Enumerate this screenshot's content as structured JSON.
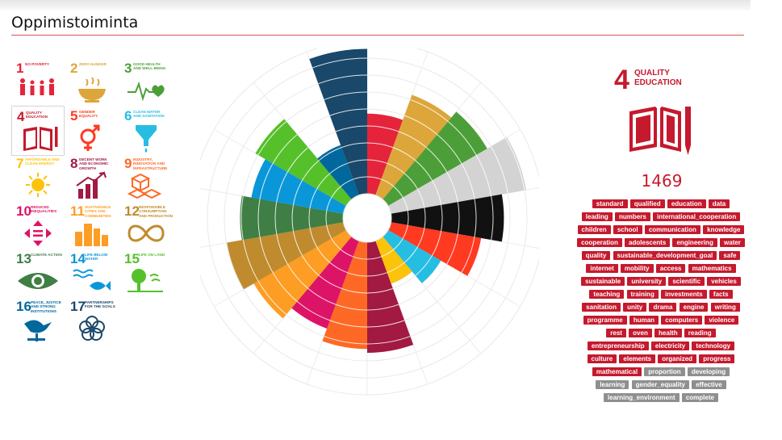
{
  "page": {
    "title": "Oppimistoiminta"
  },
  "sdg_tiles": [
    {
      "number": "1",
      "label": "NO POVERTY",
      "color": "#e5243b",
      "icon": "family-icon"
    },
    {
      "number": "2",
      "label": "ZERO HUNGER",
      "color": "#dda63a",
      "icon": "bowl-icon"
    },
    {
      "number": "3",
      "label": "GOOD HEALTH AND WELL-BEING",
      "color": "#4c9f38",
      "icon": "heartbeat-icon"
    },
    {
      "number": "4",
      "label": "QUALITY EDUCATION",
      "color": "#c5192d",
      "icon": "book-pencil-icon",
      "selected": true
    },
    {
      "number": "5",
      "label": "GENDER EQUALITY",
      "color": "#ff3a21",
      "icon": "gender-equality-icon"
    },
    {
      "number": "6",
      "label": "CLEAN WATER AND SANITATION",
      "color": "#26bde2",
      "icon": "water-drop-icon"
    },
    {
      "number": "7",
      "label": "AFFORDABLE AND CLEAN ENERGY",
      "color": "#fcc30b",
      "icon": "sun-icon"
    },
    {
      "number": "8",
      "label": "DECENT WORK AND ECONOMIC GROWTH",
      "color": "#a21942",
      "icon": "growth-chart-icon"
    },
    {
      "number": "9",
      "label": "INDUSTRY, INNOVATION AND INFRASTRUCTURE",
      "color": "#fd6925",
      "icon": "cubes-icon"
    },
    {
      "number": "10",
      "label": "REDUCED INEQUALITIES",
      "color": "#dd1367",
      "icon": "arrows-icon"
    },
    {
      "number": "11",
      "label": "SUSTAINABLE CITIES AND COMMUNITIES",
      "color": "#fd9d24",
      "icon": "buildings-icon"
    },
    {
      "number": "12",
      "label": "RESPONSIBLE CONSUMPTION AND PRODUCTION",
      "color": "#bf8b2e",
      "icon": "infinity-icon"
    },
    {
      "number": "13",
      "label": "CLIMATE ACTION",
      "color": "#3f7e44",
      "icon": "eye-globe-icon"
    },
    {
      "number": "14",
      "label": "LIFE BELOW WATER",
      "color": "#0a97d9",
      "icon": "fish-icon"
    },
    {
      "number": "15",
      "label": "LIFE ON LAND",
      "color": "#56c02b",
      "icon": "tree-icon"
    },
    {
      "number": "16",
      "label": "PEACE, JUSTICE AND STRONG INSTITUTIONS",
      "color": "#00689d",
      "icon": "dove-icon"
    },
    {
      "number": "17",
      "label": "PARTNERSHIPS FOR THE GOALS",
      "color": "#19486a",
      "icon": "rings-icon"
    }
  ],
  "chart_data": {
    "type": "polar-bar",
    "max": 8,
    "segments": [
      {
        "sdg": "1",
        "color": "#e5243b",
        "value": 4.2
      },
      {
        "sdg": "2",
        "color": "#dda63a",
        "value": 5.6
      },
      {
        "sdg": "3",
        "color": "#4c9f38",
        "value": 6.0
      },
      {
        "sdg": "17",
        "color": "#d3d3d3",
        "value": 7.2
      },
      {
        "sdg": "17",
        "color": "#111111",
        "value": 5.9
      },
      {
        "sdg": "5",
        "color": "#ff3a21",
        "value": 4.8
      },
      {
        "sdg": "6",
        "color": "#26bde2",
        "value": 3.2
      },
      {
        "sdg": "7",
        "color": "#fcc30b",
        "value": 2.4
      },
      {
        "sdg": "8",
        "color": "#a21942",
        "value": 5.8
      },
      {
        "sdg": "9",
        "color": "#fd6925",
        "value": 5.6
      },
      {
        "sdg": "10",
        "color": "#dd1367",
        "value": 4.9
      },
      {
        "sdg": "11",
        "color": "#fd9d24",
        "value": 5.6
      },
      {
        "sdg": "12",
        "color": "#bf8b2e",
        "value": 6.2
      },
      {
        "sdg": "13",
        "color": "#3f7e44",
        "value": 5.4
      },
      {
        "sdg": "14",
        "color": "#0a97d9",
        "value": 4.9
      },
      {
        "sdg": "15",
        "color": "#56c02b",
        "value": 5.5
      },
      {
        "sdg": "16",
        "color": "#00689d",
        "value": 2.8
      },
      {
        "sdg": "4",
        "color": "#19486a",
        "value": 7.6
      }
    ]
  },
  "selected_goal": {
    "number": "4",
    "label_line1": "QUALITY",
    "label_line2": "EDUCATION",
    "color": "#c5192d",
    "icon": "book-pencil-icon",
    "count": "1469"
  },
  "keywords": [
    {
      "text": "standard"
    },
    {
      "text": "qualified"
    },
    {
      "text": "education"
    },
    {
      "text": "data"
    },
    {
      "text": "leading"
    },
    {
      "text": "numbers"
    },
    {
      "text": "international_cooperation"
    },
    {
      "text": "children"
    },
    {
      "text": "school"
    },
    {
      "text": "communication"
    },
    {
      "text": "knowledge"
    },
    {
      "text": "cooperation"
    },
    {
      "text": "adolescents"
    },
    {
      "text": "engineering"
    },
    {
      "text": "water"
    },
    {
      "text": "quality"
    },
    {
      "text": "sustainable_development_goal"
    },
    {
      "text": "safe"
    },
    {
      "text": "internet"
    },
    {
      "text": "mobility"
    },
    {
      "text": "access"
    },
    {
      "text": "mathematics"
    },
    {
      "text": "sustainable"
    },
    {
      "text": "university"
    },
    {
      "text": "scientific"
    },
    {
      "text": "vehicles"
    },
    {
      "text": "teaching"
    },
    {
      "text": "training"
    },
    {
      "text": "investments"
    },
    {
      "text": "facts"
    },
    {
      "text": "sanitation"
    },
    {
      "text": "unity"
    },
    {
      "text": "drama"
    },
    {
      "text": "engine"
    },
    {
      "text": "writing"
    },
    {
      "text": "programme"
    },
    {
      "text": "human"
    },
    {
      "text": "computers"
    },
    {
      "text": "violence"
    },
    {
      "text": "rest"
    },
    {
      "text": "oven"
    },
    {
      "text": "health"
    },
    {
      "text": "reading"
    },
    {
      "text": "entrepreneurship"
    },
    {
      "text": "electricity"
    },
    {
      "text": "technology"
    },
    {
      "text": "culture"
    },
    {
      "text": "elements"
    },
    {
      "text": "organized"
    },
    {
      "text": "progress"
    },
    {
      "text": "mathematical"
    },
    {
      "text": "proportion",
      "grey": true
    },
    {
      "text": "developing",
      "grey": true
    },
    {
      "text": "learning",
      "grey": true
    },
    {
      "text": "gender_equality",
      "grey": true
    },
    {
      "text": "effective",
      "grey": true
    },
    {
      "text": "learning_environment",
      "grey": true
    },
    {
      "text": "complete",
      "grey": true
    }
  ]
}
